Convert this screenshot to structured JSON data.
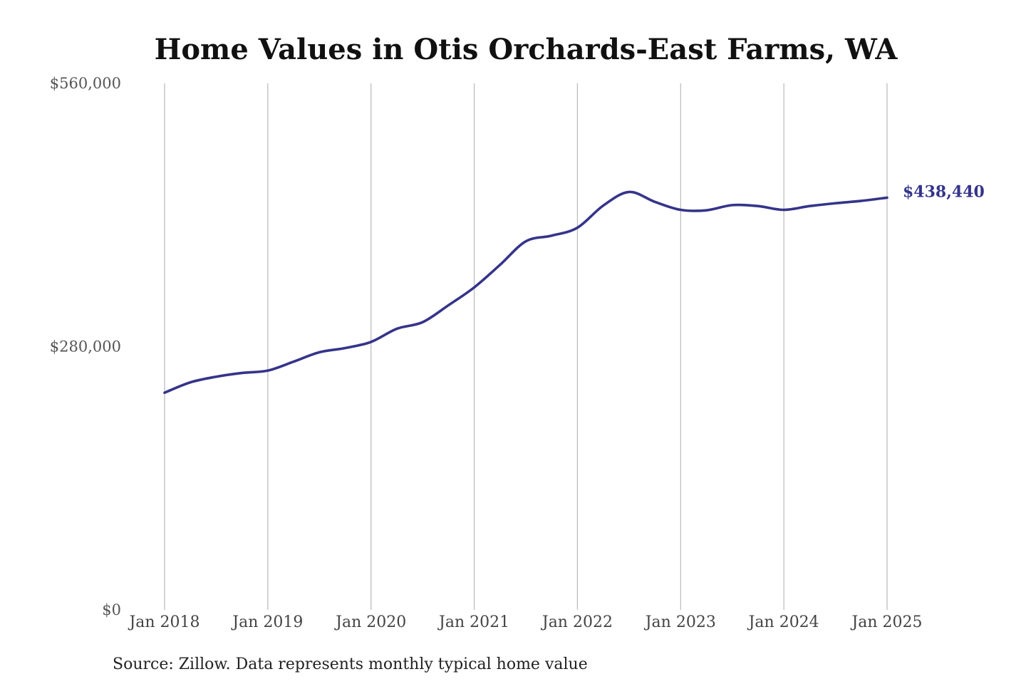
{
  "colors": {
    "series": "#35348a"
  },
  "chart_data": {
    "type": "line",
    "title": "Home Values in Otis Orchards-East Farms, WA",
    "xlabel": "",
    "ylabel": "",
    "ylim": [
      0,
      560000
    ],
    "yticks": [
      {
        "value": 0,
        "label": "$0"
      },
      {
        "value": 280000,
        "label": "$280,000"
      },
      {
        "value": 560000,
        "label": "$560,000"
      }
    ],
    "xlim": [
      "2018-01",
      "2025-01"
    ],
    "xticks": [
      "Jan 2018",
      "Jan 2019",
      "Jan 2020",
      "Jan 2021",
      "Jan 2022",
      "Jan 2023",
      "Jan 2024",
      "Jan 2025"
    ],
    "grid": "vertical",
    "legend": "none",
    "series": [
      {
        "color": "#35348a",
        "end_label": "$438,440",
        "points": [
          {
            "x": "2018-01",
            "y": 231000
          },
          {
            "x": "2018-04",
            "y": 242000
          },
          {
            "x": "2018-07",
            "y": 248000
          },
          {
            "x": "2018-10",
            "y": 252000
          },
          {
            "x": "2019-01",
            "y": 254500
          },
          {
            "x": "2019-04",
            "y": 264000
          },
          {
            "x": "2019-07",
            "y": 274000
          },
          {
            "x": "2019-10",
            "y": 278500
          },
          {
            "x": "2020-01",
            "y": 285000
          },
          {
            "x": "2020-04",
            "y": 299000
          },
          {
            "x": "2020-07",
            "y": 306000
          },
          {
            "x": "2020-10",
            "y": 324000
          },
          {
            "x": "2021-01",
            "y": 343000
          },
          {
            "x": "2021-04",
            "y": 367000
          },
          {
            "x": "2021-07",
            "y": 392000
          },
          {
            "x": "2021-10",
            "y": 398000
          },
          {
            "x": "2022-01",
            "y": 406500
          },
          {
            "x": "2022-04",
            "y": 430000
          },
          {
            "x": "2022-07",
            "y": 444500
          },
          {
            "x": "2022-10",
            "y": 434000
          },
          {
            "x": "2023-01",
            "y": 425500
          },
          {
            "x": "2023-04",
            "y": 425000
          },
          {
            "x": "2023-07",
            "y": 430500
          },
          {
            "x": "2023-10",
            "y": 429500
          },
          {
            "x": "2024-01",
            "y": 425500
          },
          {
            "x": "2024-04",
            "y": 429500
          },
          {
            "x": "2024-07",
            "y": 432500
          },
          {
            "x": "2024-10",
            "y": 435000
          },
          {
            "x": "2025-01",
            "y": 438440
          }
        ]
      }
    ],
    "source": "Source: Zillow. Data represents monthly typical home value"
  }
}
